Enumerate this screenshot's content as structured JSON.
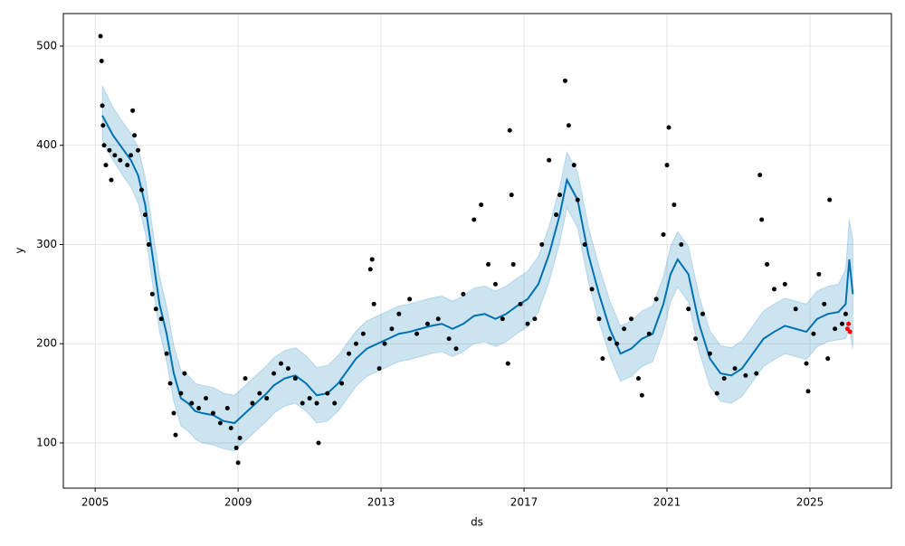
{
  "chart_data": {
    "type": "forecast",
    "xlabel": "ds",
    "ylabel": "y",
    "xlim": [
      2004.11,
      2027.28
    ],
    "xticks": [
      2005,
      2009,
      2013,
      2017,
      2021,
      2025
    ],
    "ylim": [
      54.4,
      532.8
    ],
    "yticks": [
      100,
      200,
      300,
      400,
      500
    ],
    "grid": true,
    "series": [
      {
        "type": "band",
        "color": "#0072b2",
        "x": [
          2005.2,
          2005.5,
          2005.8,
          2006.0,
          2006.2,
          2006.4,
          2006.6,
          2006.8,
          2007.0,
          2007.2,
          2007.4,
          2007.6,
          2007.8,
          2008.0,
          2008.3,
          2008.6,
          2008.9,
          2009.2,
          2009.5,
          2009.8,
          2010.0,
          2010.3,
          2010.6,
          2010.9,
          2011.2,
          2011.5,
          2011.8,
          2012.0,
          2012.3,
          2012.6,
          2012.9,
          2013.2,
          2013.5,
          2013.8,
          2014.1,
          2014.4,
          2014.7,
          2015.0,
          2015.3,
          2015.6,
          2015.9,
          2016.2,
          2016.5,
          2016.8,
          2017.1,
          2017.4,
          2017.7,
          2018.0,
          2018.2,
          2018.5,
          2018.8,
          2019.1,
          2019.4,
          2019.7,
          2020.0,
          2020.3,
          2020.6,
          2020.9,
          2021.1,
          2021.3,
          2021.6,
          2021.9,
          2022.2,
          2022.5,
          2022.8,
          2023.1,
          2023.4,
          2023.7,
          2024.0,
          2024.3,
          2024.6,
          2024.9,
          2025.2,
          2025.5,
          2025.8,
          2026.0,
          2026.1,
          2026.2
        ],
        "lower": [
          405,
          385,
          368,
          358,
          342,
          312,
          262,
          212,
          182,
          142,
          117,
          112,
          104,
          100,
          98,
          94,
          92,
          102,
          112,
          122,
          130,
          137,
          140,
          132,
          120,
          122,
          132,
          142,
          157,
          167,
          172,
          177,
          182,
          184,
          187,
          190,
          192,
          187,
          192,
          200,
          202,
          197,
          202,
          210,
          217,
          232,
          262,
          302,
          337,
          317,
          262,
          222,
          187,
          162,
          167,
          177,
          182,
          212,
          242,
          257,
          242,
          192,
          157,
          142,
          140,
          147,
          162,
          177,
          184,
          190,
          187,
          184,
          197,
          202,
          204,
          205,
          215,
          195
        ],
        "upper": [
          460,
          438,
          422,
          412,
          398,
          368,
          318,
          268,
          238,
          198,
          173,
          168,
          160,
          158,
          156,
          150,
          148,
          158,
          168,
          178,
          186,
          193,
          196,
          188,
          176,
          178,
          188,
          198,
          213,
          223,
          228,
          233,
          238,
          240,
          243,
          246,
          248,
          243,
          248,
          256,
          258,
          253,
          258,
          266,
          273,
          288,
          318,
          358,
          393,
          373,
          318,
          278,
          243,
          218,
          223,
          233,
          238,
          268,
          298,
          313,
          298,
          248,
          213,
          198,
          196,
          203,
          218,
          233,
          240,
          246,
          243,
          240,
          253,
          258,
          260,
          275,
          325,
          305
        ]
      },
      {
        "type": "line",
        "color": "#0072b2",
        "x": [
          2005.2,
          2005.5,
          2005.8,
          2006.0,
          2006.2,
          2006.4,
          2006.6,
          2006.8,
          2007.0,
          2007.2,
          2007.4,
          2007.6,
          2007.8,
          2008.0,
          2008.3,
          2008.6,
          2008.9,
          2009.2,
          2009.5,
          2009.8,
          2010.0,
          2010.3,
          2010.6,
          2010.9,
          2011.2,
          2011.5,
          2011.8,
          2012.0,
          2012.3,
          2012.6,
          2012.9,
          2013.2,
          2013.5,
          2013.8,
          2014.1,
          2014.4,
          2014.7,
          2015.0,
          2015.3,
          2015.6,
          2015.9,
          2016.2,
          2016.5,
          2016.8,
          2017.1,
          2017.4,
          2017.7,
          2018.0,
          2018.2,
          2018.5,
          2018.8,
          2019.1,
          2019.4,
          2019.7,
          2020.0,
          2020.3,
          2020.6,
          2020.9,
          2021.1,
          2021.3,
          2021.6,
          2021.9,
          2022.2,
          2022.5,
          2022.8,
          2023.1,
          2023.4,
          2023.7,
          2024.0,
          2024.3,
          2024.6,
          2024.9,
          2025.2,
          2025.5,
          2025.8,
          2026.0,
          2026.1,
          2026.2
        ],
        "values": [
          430,
          410,
          395,
          385,
          370,
          340,
          290,
          240,
          210,
          170,
          145,
          140,
          132,
          130,
          128,
          122,
          120,
          130,
          140,
          150,
          158,
          165,
          168,
          160,
          148,
          150,
          160,
          170,
          185,
          195,
          200,
          205,
          210,
          212,
          215,
          218,
          220,
          215,
          220,
          228,
          230,
          225,
          230,
          238,
          245,
          260,
          290,
          330,
          365,
          345,
          290,
          250,
          215,
          190,
          195,
          205,
          210,
          240,
          270,
          285,
          270,
          220,
          185,
          170,
          168,
          175,
          190,
          205,
          212,
          218,
          215,
          212,
          225,
          230,
          232,
          240,
          285,
          250
        ]
      },
      {
        "type": "scatter",
        "color": "#000000",
        "x": [
          2005.15,
          2005.18,
          2005.2,
          2005.22,
          2005.25,
          2005.3,
          2005.4,
          2005.45,
          2005.55,
          2005.7,
          2005.9,
          2006.0,
          2006.05,
          2006.1,
          2006.2,
          2006.3,
          2006.4,
          2006.5,
          2006.6,
          2006.7,
          2006.85,
          2007.0,
          2007.1,
          2007.2,
          2007.25,
          2007.4,
          2007.5,
          2007.7,
          2007.9,
          2008.1,
          2008.3,
          2008.5,
          2008.7,
          2008.8,
          2008.95,
          2009.0,
          2009.05,
          2009.2,
          2009.4,
          2009.6,
          2009.8,
          2010.0,
          2010.2,
          2010.4,
          2010.6,
          2010.8,
          2011.0,
          2011.2,
          2011.25,
          2011.5,
          2011.7,
          2011.9,
          2012.1,
          2012.3,
          2012.5,
          2012.7,
          2012.75,
          2012.8,
          2012.95,
          2013.1,
          2013.3,
          2013.5,
          2013.8,
          2014.0,
          2014.3,
          2014.6,
          2014.9,
          2015.1,
          2015.3,
          2015.6,
          2015.8,
          2016.0,
          2016.2,
          2016.4,
          2016.55,
          2016.6,
          2016.65,
          2016.7,
          2016.9,
          2017.1,
          2017.3,
          2017.5,
          2017.7,
          2017.9,
          2018.0,
          2018.15,
          2018.25,
          2018.4,
          2018.5,
          2018.7,
          2018.9,
          2019.1,
          2019.2,
          2019.4,
          2019.6,
          2019.8,
          2020.0,
          2020.2,
          2020.3,
          2020.5,
          2020.7,
          2020.9,
          2021.0,
          2021.05,
          2021.2,
          2021.4,
          2021.6,
          2021.8,
          2022.0,
          2022.2,
          2022.4,
          2022.6,
          2022.9,
          2023.2,
          2023.5,
          2023.6,
          2023.65,
          2023.8,
          2024.0,
          2024.3,
          2024.6,
          2024.9,
          2024.95,
          2025.1,
          2025.25,
          2025.4,
          2025.5,
          2025.55,
          2025.7,
          2025.9,
          2026.0
        ],
        "values": [
          510,
          485,
          440,
          420,
          400,
          380,
          395,
          365,
          390,
          385,
          380,
          390,
          435,
          410,
          395,
          355,
          330,
          300,
          250,
          235,
          225,
          190,
          160,
          130,
          108,
          150,
          170,
          140,
          135,
          145,
          130,
          120,
          135,
          115,
          95,
          80,
          105,
          165,
          140,
          150,
          145,
          170,
          180,
          175,
          165,
          140,
          145,
          140,
          100,
          150,
          140,
          160,
          190,
          200,
          210,
          275,
          285,
          240,
          175,
          200,
          215,
          230,
          245,
          210,
          220,
          225,
          205,
          195,
          250,
          325,
          340,
          280,
          260,
          225,
          180,
          415,
          350,
          280,
          240,
          220,
          225,
          300,
          385,
          330,
          350,
          465,
          420,
          380,
          345,
          300,
          255,
          225,
          185,
          205,
          200,
          215,
          225,
          165,
          148,
          210,
          245,
          310,
          380,
          418,
          340,
          300,
          235,
          205,
          230,
          190,
          150,
          165,
          175,
          168,
          170,
          370,
          325,
          280,
          255,
          260,
          235,
          180,
          152,
          210,
          270,
          240,
          185,
          345,
          215,
          220,
          230
        ]
      },
      {
        "type": "scatter",
        "color": "#ff0000",
        "x": [
          2026.05,
          2026.08,
          2026.12
        ],
        "values": [
          215,
          220,
          212
        ]
      }
    ]
  }
}
